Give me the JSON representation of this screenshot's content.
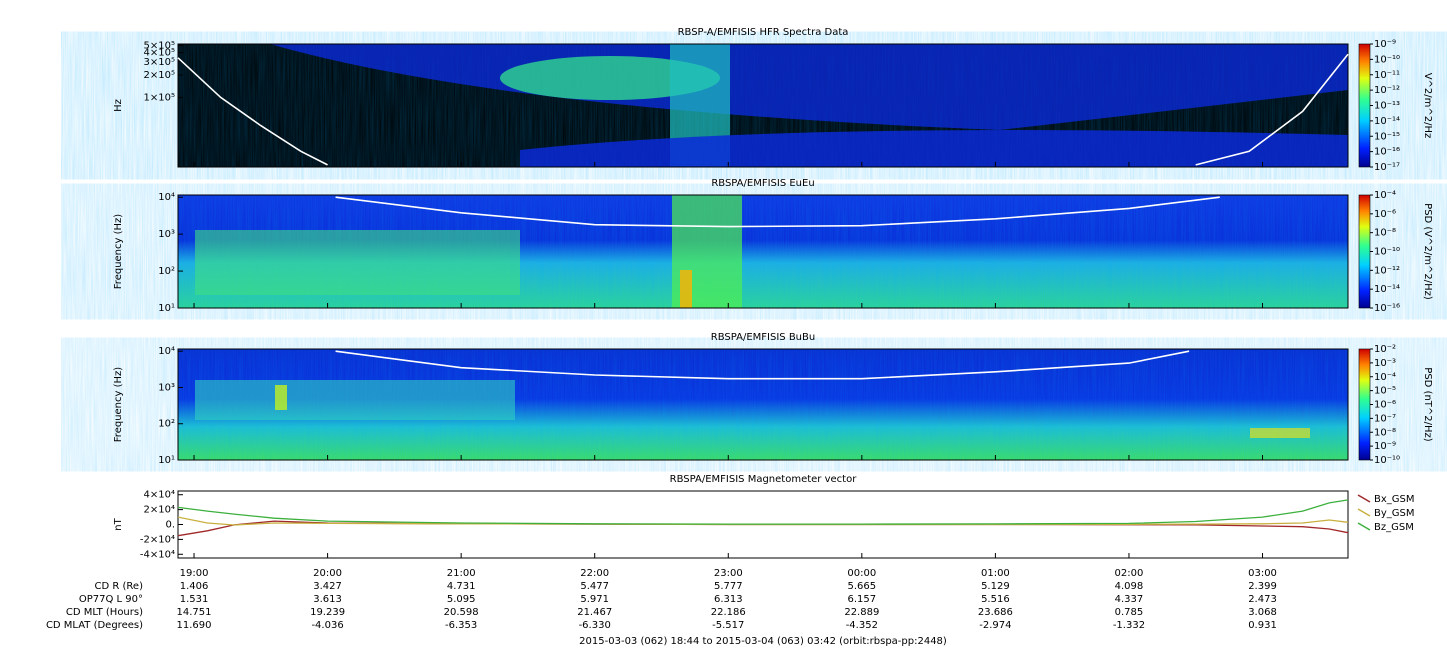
{
  "chart_data": [
    {
      "type": "spectrogram",
      "title": "RBSP-A/EMFISIS  HFR Spectra Data",
      "ylabel": "Hz",
      "ylog": true,
      "xlim": [
        18.88,
        27.64
      ],
      "xticks": [
        19,
        20,
        21,
        22,
        23,
        24,
        25,
        26,
        27
      ],
      "ylim": [
        11700,
        520000
      ],
      "yticks": [
        {
          "value": 500000,
          "label": "5×10⁵"
        },
        {
          "value": 400000,
          "label": "4×10⁵"
        },
        {
          "value": 300000,
          "label": "3×10⁵"
        },
        {
          "value": 200000,
          "label": "2×10⁵"
        },
        {
          "value": 100000,
          "label": "1×10⁵"
        }
      ],
      "overlay": {
        "color": "#ffffff",
        "x": [
          18.88,
          19.2,
          19.5,
          19.8,
          20.0,
          23.0,
          26.5,
          26.9,
          27.3,
          27.64
        ],
        "values": [
          340000,
          100000,
          42000,
          19000,
          12500,
          null,
          12500,
          19000,
          65000,
          380000
        ]
      },
      "colorbar": {
        "label": "V^2/m^2/Hz",
        "clim": [
          1e-17,
          1e-09
        ],
        "ticks": [
          {
            "value": 1e-09,
            "label": "10⁻⁹"
          },
          {
            "value": 1e-10,
            "label": "10⁻¹⁰"
          },
          {
            "value": 1e-11,
            "label": "10⁻¹¹"
          },
          {
            "value": 1e-12,
            "label": "10⁻¹²"
          },
          {
            "value": 1e-13,
            "label": "10⁻¹³"
          },
          {
            "value": 1e-14,
            "label": "10⁻¹⁴"
          },
          {
            "value": 1e-15,
            "label": "10⁻¹⁵"
          },
          {
            "value": 1e-16,
            "label": "10⁻¹⁶"
          },
          {
            "value": 1e-17,
            "label": "10⁻¹⁷"
          }
        ]
      }
    },
    {
      "type": "spectrogram",
      "title": "RBSPA/EMFISIS  EuEu",
      "ylabel": "Frequency (Hz)",
      "ylog": true,
      "xlim": [
        18.88,
        27.64
      ],
      "xticks": [
        19,
        20,
        21,
        22,
        23,
        24,
        25,
        26,
        27
      ],
      "ylim": [
        10,
        11500
      ],
      "yticks": [
        {
          "value": 10,
          "label": "10¹"
        },
        {
          "value": 100,
          "label": "10²"
        },
        {
          "value": 1000,
          "label": "10³"
        },
        {
          "value": 10000,
          "label": "10⁴"
        }
      ],
      "overlay": {
        "color": "#ffffff",
        "x": [
          20.06,
          21,
          22,
          23,
          24,
          25,
          26,
          26.68
        ],
        "values": [
          10000,
          3800,
          1800,
          1600,
          1700,
          2600,
          5000,
          10000
        ]
      },
      "colorbar": {
        "label": "PSD (V^2/m^2/Hz)",
        "clim": [
          1e-16,
          0.0001
        ],
        "ticks": [
          {
            "value": 0.0001,
            "label": "10⁻⁴"
          },
          {
            "value": 1e-06,
            "label": "10⁻⁶"
          },
          {
            "value": 1e-08,
            "label": "10⁻⁸"
          },
          {
            "value": 1e-10,
            "label": "10⁻¹⁰"
          },
          {
            "value": 1e-12,
            "label": "10⁻¹²"
          },
          {
            "value": 1e-14,
            "label": "10⁻¹⁴"
          },
          {
            "value": 1e-16,
            "label": "10⁻¹⁶"
          }
        ]
      }
    },
    {
      "type": "spectrogram",
      "title": "RBSPA/EMFISIS  BuBu",
      "ylabel": "Frequency (Hz)",
      "ylog": true,
      "xlim": [
        18.88,
        27.64
      ],
      "xticks": [
        19,
        20,
        21,
        22,
        23,
        24,
        25,
        26,
        27
      ],
      "ylim": [
        10,
        11500
      ],
      "yticks": [
        {
          "value": 10,
          "label": "10¹"
        },
        {
          "value": 100,
          "label": "10²"
        },
        {
          "value": 1000,
          "label": "10³"
        },
        {
          "value": 10000,
          "label": "10⁴"
        }
      ],
      "overlay": {
        "color": "#ffffff",
        "x": [
          20.06,
          21,
          22,
          23,
          24,
          25,
          26,
          26.45
        ],
        "values": [
          10000,
          3500,
          2200,
          1750,
          1750,
          2700,
          4700,
          10000
        ]
      },
      "colorbar": {
        "label": "PSD (nT^2/Hz)",
        "clim": [
          1e-10,
          0.01
        ],
        "ticks": [
          {
            "value": 0.01,
            "label": "10⁻²"
          },
          {
            "value": 0.001,
            "label": "10⁻³"
          },
          {
            "value": 0.0001,
            "label": "10⁻⁴"
          },
          {
            "value": 1e-05,
            "label": "10⁻⁵"
          },
          {
            "value": 1e-06,
            "label": "10⁻⁶"
          },
          {
            "value": 1e-07,
            "label": "10⁻⁷"
          },
          {
            "value": 1e-08,
            "label": "10⁻⁸"
          },
          {
            "value": 1e-09,
            "label": "10⁻⁹"
          },
          {
            "value": 1e-10,
            "label": "10⁻¹⁰"
          }
        ]
      }
    },
    {
      "type": "line",
      "title": "RBSPA/EMFISIS  Magnetometer vector",
      "ylabel": "nT",
      "xlim": [
        18.88,
        27.64
      ],
      "xticks": [
        {
          "value": 19,
          "label": "19:00"
        },
        {
          "value": 20,
          "label": "20:00"
        },
        {
          "value": 21,
          "label": "21:00"
        },
        {
          "value": 22,
          "label": "22:00"
        },
        {
          "value": 23,
          "label": "23:00"
        },
        {
          "value": 24,
          "label": "00:00"
        },
        {
          "value": 25,
          "label": "01:00"
        },
        {
          "value": 26,
          "label": "02:00"
        },
        {
          "value": 27,
          "label": "03:00"
        }
      ],
      "ylim": [
        -45000,
        45000
      ],
      "yticks": [
        {
          "value": 40000,
          "label": "4×10⁴"
        },
        {
          "value": 20000,
          "label": "2×10⁴"
        },
        {
          "value": 0,
          "label": "0."
        },
        {
          "value": -20000,
          "label": "-2×10⁴"
        },
        {
          "value": -40000,
          "label": "-4×10⁴"
        }
      ],
      "x": [
        18.88,
        19.1,
        19.3,
        19.6,
        20,
        21,
        22,
        23,
        24,
        25,
        26,
        26.5,
        27,
        27.3,
        27.5,
        27.64
      ],
      "series": [
        {
          "name": "Bx_GSM",
          "color": "#a0282a",
          "values": [
            -15000,
            -8500,
            -600,
            4500,
            2000,
            1000,
            500,
            0,
            0,
            0,
            -300,
            -500,
            -2000,
            -3000,
            -6000,
            -11000
          ]
        },
        {
          "name": "By_GSM",
          "color": "#c8b040",
          "values": [
            10000,
            2000,
            -700,
            2000,
            1500,
            1000,
            500,
            0,
            0,
            0,
            300,
            500,
            1000,
            2000,
            6000,
            3000
          ]
        },
        {
          "name": "Bz_GSM",
          "color": "#3cb03c",
          "values": [
            23000,
            18000,
            14000,
            8500,
            4500,
            2000,
            1000,
            500,
            500,
            800,
            1500,
            4000,
            10000,
            18000,
            29000,
            33000
          ]
        }
      ]
    }
  ],
  "ephemeris": {
    "rows": [
      {
        "label": "CD R (Re)",
        "values": [
          "1.406",
          "3.427",
          "4.731",
          "5.477",
          "5.777",
          "5.665",
          "5.129",
          "4.098",
          "2.399"
        ]
      },
      {
        "label": "OP77Q L 90°",
        "values": [
          "1.531",
          "3.613",
          "5.095",
          "5.971",
          "6.313",
          "6.157",
          "5.516",
          "4.337",
          "2.473"
        ]
      },
      {
        "label": "CD MLT (Hours)",
        "values": [
          "14.751",
          "19.239",
          "20.598",
          "21.467",
          "22.186",
          "22.889",
          "23.686",
          "0.785",
          "3.068"
        ]
      },
      {
        "label": "CD MLAT (Degrees)",
        "values": [
          "11.690",
          "-4.036",
          "-6.353",
          "-6.330",
          "-5.517",
          "-4.352",
          "-2.974",
          "-1.332",
          "0.931"
        ]
      }
    ]
  },
  "footer": "2015-03-03 (062) 18:44 to 2015-03-04 (063) 03:42 (orbit:rbspa-pp:2448)"
}
